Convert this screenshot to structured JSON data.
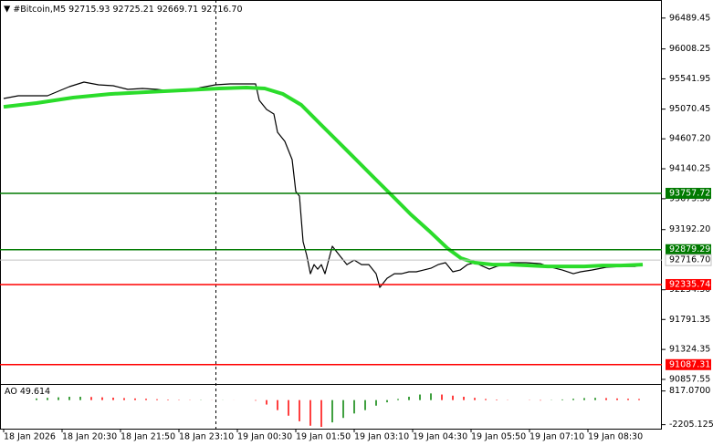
{
  "chart_data": {
    "type": "line",
    "title": "#Bitcoin,M5  92715.93 92725.21 92669.71 92716.70",
    "xlim": [
      0,
      181
    ],
    "ylim": [
      90800,
      96700
    ],
    "xticks": [
      {
        "value": 1,
        "label": "18 Jan 2026"
      },
      {
        "value": 17,
        "label": "18 Jan 20:30"
      },
      {
        "value": 33,
        "label": "18 Jan 21:50"
      },
      {
        "value": 49,
        "label": "18 Jan 23:10"
      },
      {
        "value": 65,
        "label": "19 Jan 00:30"
      },
      {
        "value": 81,
        "label": "19 Jan 01:50"
      },
      {
        "value": 97,
        "label": "19 Jan 03:10"
      },
      {
        "value": 113,
        "label": "19 Jan 04:30"
      },
      {
        "value": 129,
        "label": "19 Jan 05:50"
      },
      {
        "value": 145,
        "label": "19 Jan 07:10"
      },
      {
        "value": 161,
        "label": "19 Jan 08:30"
      }
    ],
    "yticks": [
      96489.45,
      96008.25,
      95541.95,
      95070.45,
      {
        "value": 94607.2,
        "label": "94607.20"
      },
      94140.25,
      {
        "value": 93673.3,
        "label": "93673.30"
      },
      {
        "value": 93192.2,
        "label": "93192.20"
      },
      {
        "value": 92254.3,
        "label": "92254.30"
      },
      91791.35,
      91324.35,
      90857.55
    ],
    "series": [
      {
        "color": "#000000",
        "x": [
          1,
          5,
          9,
          13,
          16,
          19,
          23,
          27,
          31,
          35,
          39,
          43,
          47,
          51,
          55,
          59,
          63,
          67,
          70,
          71,
          73,
          75,
          76,
          78,
          80,
          81,
          82,
          83,
          84,
          85,
          86,
          87,
          88,
          89,
          91,
          93,
          95,
          97,
          99,
          101,
          103,
          104,
          106,
          108,
          110,
          112,
          114,
          116,
          118,
          120,
          122,
          124,
          126,
          128,
          130,
          134,
          136,
          138,
          140,
          144,
          148,
          150,
          154,
          157,
          159,
          162,
          166,
          170,
          174,
          176
        ],
        "values": [
          95235,
          95278,
          95278,
          95278,
          95349,
          95420,
          95491,
          95449,
          95434,
          95378,
          95392,
          95378,
          95349,
          95349,
          95406,
          95449,
          95463,
          95463,
          95463,
          95207,
          95065,
          94994,
          94709,
          94567,
          94283,
          93785,
          93714,
          93003,
          92789,
          92505,
          92647,
          92576,
          92647,
          92505,
          92932,
          92789,
          92647,
          92718,
          92647,
          92647,
          92505,
          92292,
          92434,
          92505,
          92505,
          92534,
          92534,
          92562,
          92590,
          92647,
          92676,
          92534,
          92562,
          92647,
          92676,
          92576,
          92619,
          92647,
          92676,
          92676,
          92661,
          92619,
          92562,
          92505,
          92534,
          92562,
          92605,
          92619,
          92619,
          92647
        ]
      },
      {
        "color": "#2bdc2b",
        "x": [
          1,
          10,
          20,
          30,
          40,
          50,
          60,
          67.5,
          72.5,
          77.5,
          82.5,
          87.5,
          92.5,
          97.5,
          102.5,
          107.5,
          112.5,
          117.5,
          122.5,
          126.25,
          130,
          135,
          140,
          145,
          150,
          155,
          160,
          165,
          170,
          176
        ],
        "values": [
          95107,
          95164,
          95250,
          95306,
          95335,
          95363,
          95392,
          95406,
          95392,
          95306,
          95136,
          94851,
          94567,
          94283,
          93998,
          93714,
          93429,
          93173,
          92903,
          92747,
          92676,
          92647,
          92647,
          92633,
          92619,
          92619,
          92619,
          92633,
          92633,
          92647
        ]
      }
    ],
    "levels": [
      {
        "value": 93757.72,
        "color": "#007a00"
      },
      {
        "value": 92879.29,
        "color": "#007a00"
      },
      {
        "value": 92335.74,
        "color": "#ff0000"
      },
      {
        "value": 91087.31,
        "color": "#ff0000"
      }
    ],
    "current_price": {
      "value": 92716.7,
      "label": "92716.70"
    },
    "ao": {
      "type": "bar",
      "name": "AO",
      "current": 49.614,
      "up_color": "#008000",
      "down_color": "#ff0000",
      "ylim": [
        -2400,
        1200
      ],
      "yticks": [
        {
          "value": 817.07,
          "label": "817.0700"
        },
        -2205.125
      ],
      "x": [
        10,
        13,
        16,
        19,
        22,
        25,
        28,
        31,
        34,
        37,
        40,
        43,
        46,
        49,
        52,
        55,
        58,
        61,
        64,
        67,
        70,
        73,
        76,
        79,
        82,
        85,
        88,
        91,
        94,
        97,
        100,
        103,
        106,
        109,
        112,
        115,
        118,
        121,
        124,
        127,
        130,
        133,
        136,
        139,
        142,
        145,
        148,
        151,
        154,
        157,
        160,
        163,
        166,
        169,
        172,
        175
      ],
      "values": [
        150,
        200,
        250,
        300,
        300,
        280,
        250,
        220,
        180,
        150,
        120,
        80,
        50,
        30,
        20,
        20,
        10,
        10,
        5,
        0,
        -50,
        -400,
        -900,
        -1400,
        -1900,
        -2300,
        -2400,
        -2000,
        -1600,
        -1200,
        -900,
        -500,
        -200,
        100,
        300,
        500,
        600,
        500,
        400,
        300,
        200,
        100,
        50,
        20,
        0,
        -20,
        -40,
        -20,
        60,
        120,
        180,
        200,
        180,
        150,
        120,
        100
      ]
    }
  }
}
